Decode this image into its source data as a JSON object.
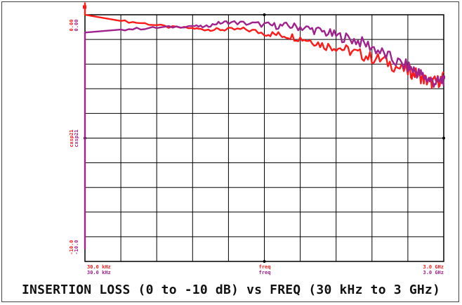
{
  "caption": "INSERTION LOSS (0 to -10 dB) vs FREQ (30 kHz to 3 GHz)",
  "colors": {
    "series1": "#ff1a1a",
    "series2": "#a0228c",
    "grid": "#000000",
    "background": "#ffffff"
  },
  "chart_data": {
    "type": "line",
    "title": "INSERTION LOSS (0 to -10 dB) vs FREQ (30 kHz to 3 GHz)",
    "x_scale": "linear",
    "xlim": [
      30000,
      3000000000
    ],
    "ylim": [
      -10,
      0
    ],
    "grid": true,
    "y_labels": {
      "top": [
        "0.00",
        "0.00"
      ],
      "mid": [
        "cxsp21",
        "cxsp21"
      ],
      "bottom": [
        "-10.0",
        "-10.0"
      ]
    },
    "x_labels": {
      "left": [
        "30.0 kHz",
        "30.0 kHz"
      ],
      "center": [
        "freq",
        "freq"
      ],
      "right": [
        "3.0 GHz",
        "3.0 GHz"
      ]
    },
    "series": [
      {
        "color": "#ff1a1a",
        "points": [
          [
            30000,
            0.0
          ],
          [
            300000000,
            -0.25
          ],
          [
            500000000,
            -0.35
          ],
          [
            700000000,
            -0.5
          ],
          [
            900000000,
            -0.55
          ],
          [
            1000000000,
            -0.6
          ],
          [
            1100000000,
            -0.6
          ],
          [
            1200000000,
            -0.6
          ],
          [
            1350000000,
            -0.6
          ],
          [
            1500000000,
            -0.75
          ],
          [
            1600000000,
            -0.8
          ],
          [
            1700000000,
            -0.85
          ],
          [
            1800000000,
            -0.95
          ],
          [
            1900000000,
            -1.05
          ],
          [
            2000000000,
            -1.25
          ],
          [
            2100000000,
            -1.3
          ],
          [
            2200000000,
            -1.45
          ],
          [
            2300000000,
            -1.6
          ],
          [
            2400000000,
            -1.75
          ],
          [
            2500000000,
            -1.85
          ],
          [
            2600000000,
            -2.1
          ],
          [
            2700000000,
            -2.3
          ],
          [
            2750000000,
            -2.35
          ],
          [
            2800000000,
            -2.5
          ],
          [
            2850000000,
            -2.65
          ],
          [
            2900000000,
            -2.75
          ],
          [
            2950000000,
            -2.7
          ],
          [
            3000000000,
            -2.55
          ]
        ]
      },
      {
        "color": "#a0228c",
        "points": [
          [
            30000,
            -0.72
          ],
          [
            300000000,
            -0.6
          ],
          [
            500000000,
            -0.55
          ],
          [
            700000000,
            -0.5
          ],
          [
            900000000,
            -0.45
          ],
          [
            1000000000,
            -0.5
          ],
          [
            1100000000,
            -0.35
          ],
          [
            1200000000,
            -0.3
          ],
          [
            1350000000,
            -0.35
          ],
          [
            1500000000,
            -0.4
          ],
          [
            1600000000,
            -0.45
          ],
          [
            1700000000,
            -0.45
          ],
          [
            1800000000,
            -0.5
          ],
          [
            1900000000,
            -0.6
          ],
          [
            2000000000,
            -0.7
          ],
          [
            2100000000,
            -0.85
          ],
          [
            2200000000,
            -0.95
          ],
          [
            2300000000,
            -1.1
          ],
          [
            2400000000,
            -1.3
          ],
          [
            2500000000,
            -1.6
          ],
          [
            2600000000,
            -1.9
          ],
          [
            2700000000,
            -2.1
          ],
          [
            2750000000,
            -2.25
          ],
          [
            2800000000,
            -2.4
          ],
          [
            2850000000,
            -2.55
          ],
          [
            2900000000,
            -2.7
          ],
          [
            2950000000,
            -2.75
          ],
          [
            3000000000,
            -2.65
          ]
        ]
      }
    ]
  }
}
